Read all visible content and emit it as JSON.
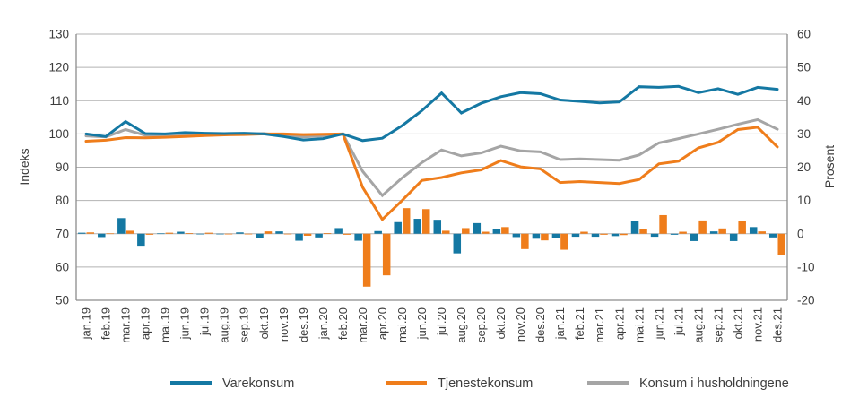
{
  "chart_data": {
    "type": "line+bar",
    "categories": [
      "jan.19",
      "feb.19",
      "mar.19",
      "apr.19",
      "mai.19",
      "jun.19",
      "jul.19",
      "aug.19",
      "sep.19",
      "okt.19",
      "nov.19",
      "des.19",
      "jan.20",
      "feb.20",
      "mar.20",
      "apr.20",
      "mai.20",
      "jun.20",
      "jul.20",
      "aug.20",
      "sep.20",
      "okt.20",
      "nov.20",
      "des.20",
      "jan.21",
      "feb.21",
      "mar.21",
      "apr.21",
      "mai.21",
      "jun.21",
      "jul.21",
      "aug.21",
      "sep.21",
      "okt.21",
      "nov.21",
      "des.21"
    ],
    "left_axis": {
      "label": "Indeks",
      "min": 50,
      "max": 130,
      "ticks": [
        130,
        120,
        110,
        100,
        90,
        80,
        70,
        60,
        50
      ]
    },
    "right_axis": {
      "label": "Prosent",
      "min": -20,
      "max": 60,
      "ticks": [
        60,
        50,
        40,
        30,
        20,
        10,
        0,
        -10,
        -20
      ]
    },
    "grid": true,
    "legend_position": "bottom",
    "line_series": [
      {
        "name": "Konsum i husholdningene",
        "axis": "left",
        "color": "#a5a5a5",
        "values": [
          99.4,
          99.1,
          101.3,
          99.6,
          99.6,
          99.8,
          99.9,
          99.9,
          99.9,
          100.1,
          99.5,
          99.1,
          99.4,
          100.0,
          88.8,
          81.5,
          86.8,
          91.4,
          95.2,
          93.4,
          94.3,
          96.3,
          94.9,
          94.6,
          92.3,
          92.5,
          92.3,
          92.1,
          93.7,
          97.3,
          98.6,
          100.0,
          101.4,
          102.9,
          104.3,
          101.4
        ]
      },
      {
        "name": "Tjenestekonsum",
        "axis": "left",
        "color": "#ef7d1b",
        "values": [
          97.8,
          98.1,
          98.9,
          98.8,
          99.0,
          99.2,
          99.5,
          99.7,
          99.8,
          100.0,
          100.0,
          99.8,
          99.9,
          100.0,
          84.0,
          74.3,
          80.0,
          86.0,
          86.9,
          88.3,
          89.2,
          92.0,
          90.1,
          89.5,
          85.4,
          85.7,
          85.4,
          85.1,
          86.3,
          91.0,
          91.8,
          95.8,
          97.5,
          101.3,
          102.0,
          96.1
        ]
      },
      {
        "name": "Varekonsum",
        "axis": "left",
        "color": "#1478a3",
        "values": [
          100.0,
          99.2,
          103.7,
          100.1,
          100.0,
          100.4,
          100.2,
          100.1,
          100.2,
          100.0,
          99.2,
          98.2,
          98.6,
          100.0,
          98.0,
          98.7,
          102.5,
          107.0,
          112.3,
          106.3,
          109.2,
          111.2,
          112.4,
          112.1,
          110.2,
          109.8,
          109.3,
          109.6,
          114.2,
          114.0,
          114.3,
          112.4,
          113.6,
          111.9,
          114.0,
          113.4
        ]
      }
    ],
    "bar_series": [
      {
        "name": "Varekonsum (prosent endring)",
        "axis": "right",
        "color": "#1478a3",
        "values": [
          0.3,
          -1.0,
          4.7,
          -3.6,
          0.1,
          0.6,
          -0.2,
          -0.1,
          0.4,
          -1.2,
          0.7,
          -2.1,
          -1.1,
          1.7,
          -2.1,
          0.8,
          3.5,
          4.5,
          4.2,
          -5.9,
          3.2,
          1.4,
          -1.0,
          -1.5,
          -1.4,
          -0.9,
          -0.9,
          -0.7,
          3.8,
          -0.9,
          -0.3,
          -2.2,
          0.7,
          -2.2,
          2.0,
          -1.1
        ]
      },
      {
        "name": "Tjenestekonsum (prosent endring)",
        "axis": "right",
        "color": "#ef7d1b",
        "values": [
          0.4,
          0.1,
          0.9,
          -0.3,
          0.3,
          0.2,
          0.3,
          -0.2,
          -0.2,
          0.7,
          -0.1,
          -0.6,
          0.2,
          -0.3,
          -15.9,
          -12.5,
          7.7,
          7.4,
          0.9,
          1.7,
          0.6,
          2.0,
          -4.6,
          -2.0,
          -4.8,
          0.6,
          -0.3,
          -0.4,
          1.4,
          5.6,
          0.6,
          4.0,
          1.6,
          3.8,
          0.7,
          -6.4
        ]
      }
    ],
    "legend": [
      {
        "label": "Varekonsum",
        "color": "#1478a3"
      },
      {
        "label": "Tjenestekonsum",
        "color": "#ef7d1b"
      },
      {
        "label": "Konsum i husholdningene",
        "color": "#a5a5a5"
      }
    ],
    "colors": {
      "gridline": "#b2b2b2",
      "axis_line": "#8c8c8c",
      "text": "#3d3d3d"
    }
  }
}
